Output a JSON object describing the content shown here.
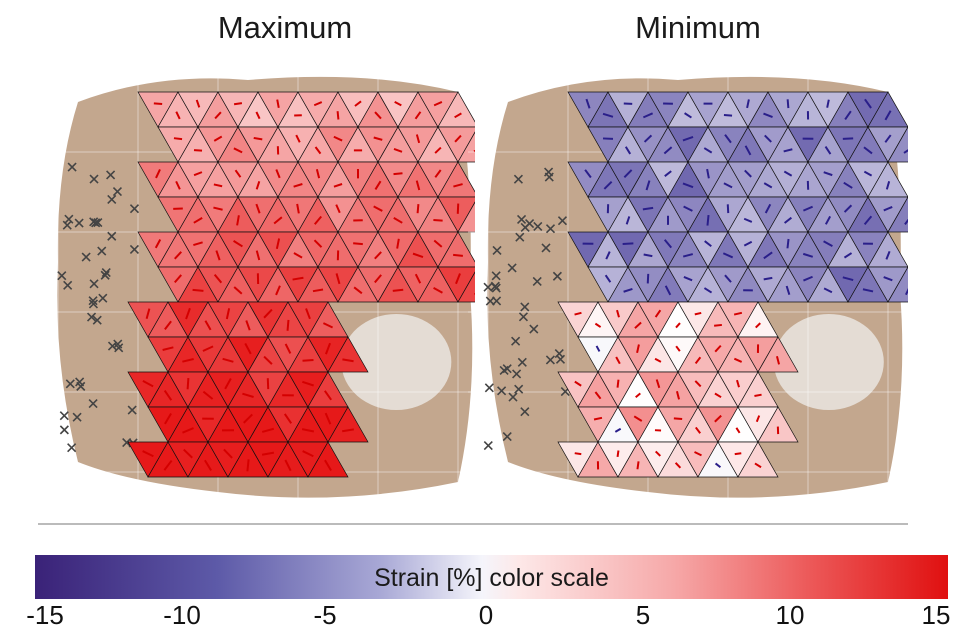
{
  "panels": [
    {
      "title": "Maximum",
      "tone": "positive"
    },
    {
      "title": "Minimum",
      "tone": "mixed"
    }
  ],
  "colorbar": {
    "label": "Strain [%] color scale",
    "ticks": [
      "-15",
      "-10",
      "-5",
      "0",
      "5",
      "10",
      "15"
    ],
    "colors": {
      "min": "#3a2278",
      "mid": "#ffffff",
      "max": "#e01010"
    }
  }
}
